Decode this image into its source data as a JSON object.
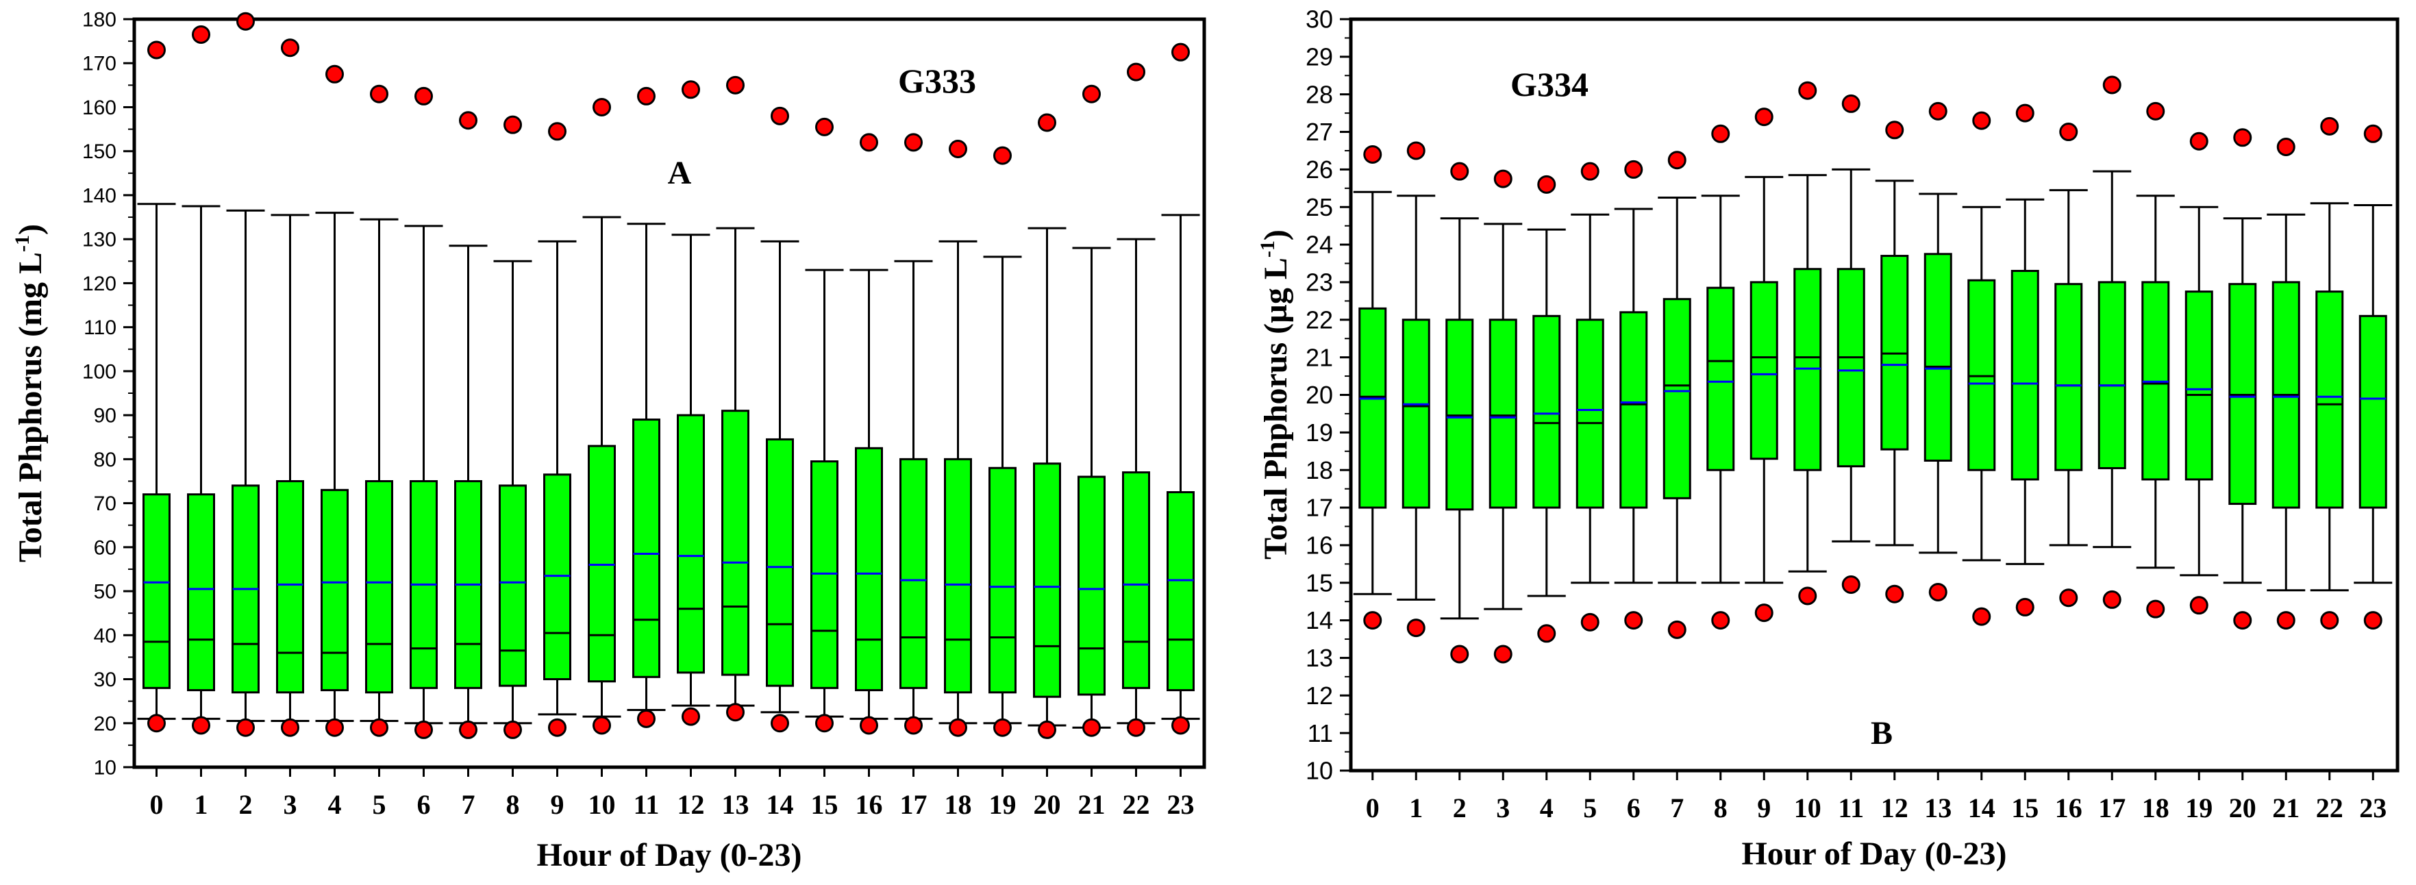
{
  "colors": {
    "box": "#00ff00",
    "median": "#000000",
    "mean": "#0000ff",
    "outlier": "#ff0000"
  },
  "chart_data": [
    {
      "type": "box",
      "title": "G333",
      "panel_label": "A",
      "xlabel": "Hour of Day (0-23)",
      "ylabel_main": "Total Phphorus (mg L",
      "ylabel_sup": "-1",
      "ylabel_end": ")",
      "ylim": [
        10,
        180
      ],
      "yticks": [
        10,
        20,
        30,
        40,
        50,
        60,
        70,
        80,
        90,
        100,
        110,
        120,
        130,
        140,
        150,
        160,
        170,
        180
      ],
      "categories": [
        "0",
        "1",
        "2",
        "3",
        "4",
        "5",
        "6",
        "7",
        "8",
        "9",
        "10",
        "11",
        "12",
        "13",
        "14",
        "15",
        "16",
        "17",
        "18",
        "19",
        "20",
        "21",
        "22",
        "23"
      ],
      "whisker_low": [
        21,
        21,
        20.5,
        20.5,
        20.5,
        20.5,
        20,
        20,
        20,
        22,
        21.5,
        23,
        24,
        24,
        22.5,
        21.5,
        21,
        21,
        20,
        20,
        19.5,
        19,
        20,
        21
      ],
      "q1": [
        28,
        27.5,
        27,
        27,
        27.5,
        27,
        28,
        28,
        28.5,
        30,
        29.5,
        30.5,
        31.5,
        31,
        28.5,
        28,
        27.5,
        28,
        27,
        27,
        26,
        26.5,
        28,
        27.5
      ],
      "median": [
        38.5,
        39,
        38,
        36,
        36,
        38,
        37,
        38,
        36.5,
        40.5,
        40,
        43.5,
        46,
        46.5,
        42.5,
        41,
        39,
        39.5,
        39,
        39.5,
        37.5,
        37,
        38.5,
        39
      ],
      "mean": [
        52,
        50.5,
        50.5,
        51.5,
        52,
        52,
        51.5,
        51.5,
        52,
        53.5,
        56,
        58.5,
        58,
        56.5,
        55.5,
        54,
        54,
        52.5,
        51.5,
        51,
        51,
        50.5,
        51.5,
        52.5
      ],
      "q3": [
        72,
        72,
        74,
        75,
        73,
        75,
        75,
        75,
        74,
        76.5,
        83,
        89,
        90,
        91,
        84.5,
        79.5,
        82.5,
        80,
        80,
        78,
        79,
        76,
        77,
        72.5
      ],
      "whisker_high": [
        138,
        137.5,
        136.5,
        135.5,
        136,
        134.5,
        133,
        128.5,
        125,
        129.5,
        135,
        133.5,
        131,
        132.5,
        129.5,
        123,
        123,
        125,
        129.5,
        126,
        132.5,
        128,
        130,
        135.5
      ],
      "outliers_high": [
        173,
        176.5,
        179.5,
        173.5,
        167.5,
        163,
        162.5,
        157,
        156,
        154.5,
        160,
        162.5,
        164,
        165,
        158,
        155.5,
        152,
        152,
        150.5,
        149,
        156.5,
        163,
        168,
        172.5
      ],
      "outliers_low": [
        20,
        19.5,
        19,
        19,
        19,
        19,
        18.5,
        18.5,
        18.5,
        19,
        19.5,
        21,
        21.5,
        22.5,
        20,
        20,
        19.5,
        19.5,
        19,
        19,
        18.5,
        19,
        19,
        19.5
      ]
    },
    {
      "type": "box",
      "title": "G334",
      "panel_label": "B",
      "xlabel": "Hour of Day (0-23)",
      "ylabel_main": "Total Phphorus (µg L",
      "ylabel_sup": "-1",
      "ylabel_end": ")",
      "ylim": [
        10,
        30
      ],
      "yticks": [
        10,
        11,
        12,
        13,
        14,
        15,
        16,
        17,
        18,
        19,
        20,
        21,
        22,
        23,
        24,
        25,
        26,
        27,
        28,
        29,
        30
      ],
      "categories": [
        "0",
        "1",
        "2",
        "3",
        "4",
        "5",
        "6",
        "7",
        "8",
        "9",
        "10",
        "11",
        "12",
        "13",
        "14",
        "15",
        "16",
        "17",
        "18",
        "19",
        "20",
        "21",
        "22",
        "23"
      ],
      "whisker_low": [
        14.7,
        14.55,
        14.05,
        14.3,
        14.65,
        15,
        15,
        15,
        15,
        15,
        15.3,
        16.1,
        16,
        15.8,
        15.6,
        15.5,
        16,
        15.95,
        15.4,
        15.2,
        15,
        14.8,
        14.8,
        15
      ],
      "q1": [
        17,
        17,
        16.95,
        17,
        17,
        17,
        17,
        17.25,
        18,
        18.3,
        18,
        18.1,
        18.55,
        18.25,
        18,
        17.75,
        18,
        18.05,
        17.75,
        17.75,
        17.1,
        17,
        17,
        17
      ],
      "median": [
        19.95,
        19.7,
        19.45,
        19.45,
        19.25,
        19.25,
        19.75,
        20.25,
        20.9,
        21,
        21,
        21,
        21.1,
        20.75,
        20.5,
        20.3,
        20.25,
        20.25,
        20.3,
        20,
        20,
        20,
        19.75,
        19.9
      ],
      "mean": [
        19.9,
        19.75,
        19.4,
        19.4,
        19.5,
        19.6,
        19.8,
        20.1,
        20.35,
        20.55,
        20.7,
        20.65,
        20.8,
        20.7,
        20.3,
        20.3,
        20.25,
        20.25,
        20.35,
        20.15,
        19.95,
        19.95,
        19.95,
        19.9
      ],
      "q3": [
        22.3,
        22,
        22,
        22,
        22.1,
        22,
        22.2,
        22.55,
        22.85,
        23,
        23.35,
        23.35,
        23.7,
        23.75,
        23.05,
        23.3,
        22.95,
        23,
        23,
        22.75,
        22.95,
        23,
        22.75,
        22.1
      ],
      "whisker_high": [
        25.4,
        25.3,
        24.7,
        24.55,
        24.4,
        24.8,
        24.95,
        25.25,
        25.3,
        25.8,
        25.85,
        26,
        25.7,
        25.35,
        25,
        25.2,
        25.45,
        25.95,
        25.3,
        25,
        24.7,
        24.8,
        25.1,
        25.05
      ],
      "outliers_high": [
        26.4,
        26.5,
        25.95,
        25.75,
        25.6,
        25.95,
        26,
        26.25,
        26.95,
        27.4,
        28.1,
        27.75,
        27.05,
        27.55,
        27.3,
        27.5,
        27,
        28.25,
        27.55,
        26.75,
        26.85,
        26.6,
        27.15,
        26.95
      ],
      "outliers_low": [
        14,
        13.8,
        13.1,
        13.1,
        13.65,
        13.95,
        14,
        13.75,
        14,
        14.2,
        14.65,
        14.95,
        14.7,
        14.75,
        14.1,
        14.35,
        14.6,
        14.55,
        14.3,
        14.4,
        14,
        14,
        14,
        14
      ]
    }
  ]
}
